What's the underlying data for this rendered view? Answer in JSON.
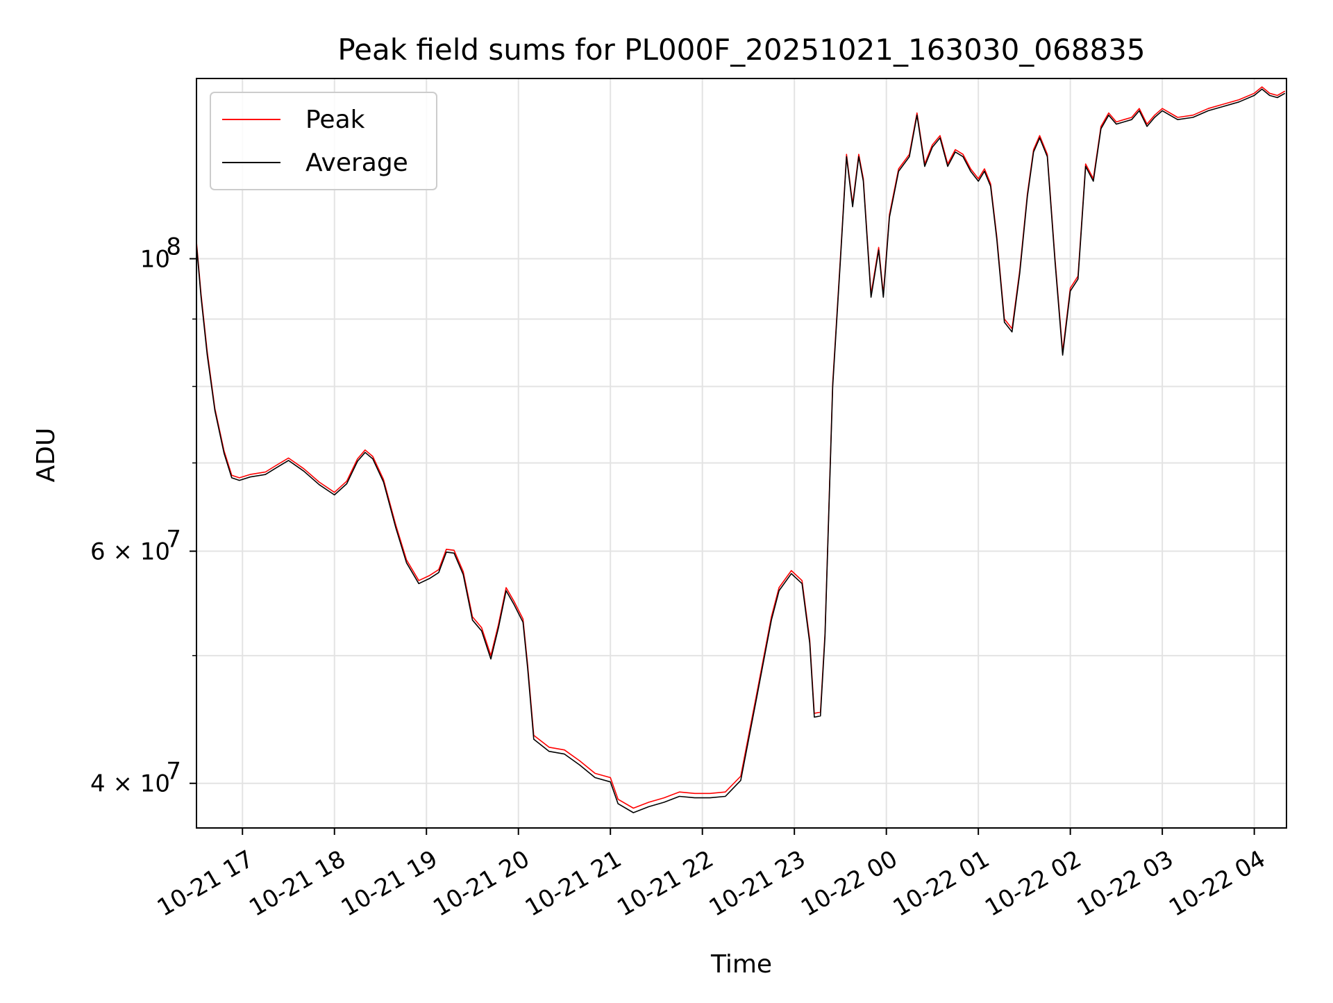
{
  "chart_data": {
    "type": "line",
    "title": "Peak field sums for PL000F_20251021_163030_068835",
    "xlabel": "Time",
    "ylabel": "ADU",
    "yscale": "log",
    "grid": true,
    "legend_position": "top-left",
    "xlim": [
      "2025-10-21 16:30",
      "2025-10-22 04:21"
    ],
    "ylim": [
      37000000,
      137000000
    ],
    "x_ticks": [
      "10-21 17",
      "10-21 18",
      "10-21 19",
      "10-21 20",
      "10-21 21",
      "10-21 22",
      "10-21 23",
      "10-22 00",
      "10-22 01",
      "10-22 02",
      "10-22 03",
      "10-22 04"
    ],
    "y_ticks": [
      {
        "value": 40000000,
        "label": "4 × 10",
        "exp": "7"
      },
      {
        "value": 60000000,
        "label": "6 × 10",
        "exp": "7"
      },
      {
        "value": 100000000,
        "label": "10",
        "exp": "8"
      }
    ],
    "series": [
      {
        "name": "Peak",
        "color": "#ff0000",
        "x": [
          "2025-10-21 16:30",
          "2025-10-21 16:33",
          "2025-10-21 16:37",
          "2025-10-21 16:42",
          "2025-10-21 16:48",
          "2025-10-21 16:53",
          "2025-10-21 16:58",
          "2025-10-21 17:05",
          "2025-10-21 17:15",
          "2025-10-21 17:22",
          "2025-10-21 17:30",
          "2025-10-21 17:40",
          "2025-10-21 17:50",
          "2025-10-21 18:00",
          "2025-10-21 18:08",
          "2025-10-21 18:15",
          "2025-10-21 18:20",
          "2025-10-21 18:25",
          "2025-10-21 18:32",
          "2025-10-21 18:40",
          "2025-10-21 18:47",
          "2025-10-21 18:55",
          "2025-10-21 19:02",
          "2025-10-21 19:08",
          "2025-10-21 19:13",
          "2025-10-21 19:18",
          "2025-10-21 19:24",
          "2025-10-21 19:30",
          "2025-10-21 19:36",
          "2025-10-21 19:42",
          "2025-10-21 19:47",
          "2025-10-21 19:52",
          "2025-10-21 19:57",
          "2025-10-21 20:03",
          "2025-10-21 20:06",
          "2025-10-21 20:10",
          "2025-10-21 20:20",
          "2025-10-21 20:30",
          "2025-10-21 20:40",
          "2025-10-21 20:50",
          "2025-10-21 21:00",
          "2025-10-21 21:05",
          "2025-10-21 21:15",
          "2025-10-21 21:25",
          "2025-10-21 21:35",
          "2025-10-21 21:45",
          "2025-10-21 21:55",
          "2025-10-21 22:05",
          "2025-10-21 22:15",
          "2025-10-21 22:25",
          "2025-10-21 22:35",
          "2025-10-21 22:45",
          "2025-10-21 22:50",
          "2025-10-21 22:58",
          "2025-10-21 23:05",
          "2025-10-21 23:10",
          "2025-10-21 23:13",
          "2025-10-21 23:17",
          "2025-10-21 23:20",
          "2025-10-21 23:25",
          "2025-10-21 23:30",
          "2025-10-21 23:34",
          "2025-10-21 23:38",
          "2025-10-21 23:42",
          "2025-10-21 23:45",
          "2025-10-21 23:50",
          "2025-10-21 23:55",
          "2025-10-21 23:58",
          "2025-10-22 00:02",
          "2025-10-22 00:08",
          "2025-10-22 00:15",
          "2025-10-22 00:20",
          "2025-10-22 00:25",
          "2025-10-22 00:30",
          "2025-10-22 00:35",
          "2025-10-22 00:40",
          "2025-10-22 00:45",
          "2025-10-22 00:50",
          "2025-10-22 00:55",
          "2025-10-22 01:00",
          "2025-10-22 01:04",
          "2025-10-22 01:08",
          "2025-10-22 01:12",
          "2025-10-22 01:17",
          "2025-10-22 01:22",
          "2025-10-22 01:27",
          "2025-10-22 01:32",
          "2025-10-22 01:36",
          "2025-10-22 01:40",
          "2025-10-22 01:45",
          "2025-10-22 01:50",
          "2025-10-22 01:55",
          "2025-10-22 02:00",
          "2025-10-22 02:05",
          "2025-10-22 02:10",
          "2025-10-22 02:15",
          "2025-10-22 02:20",
          "2025-10-22 02:25",
          "2025-10-22 02:30",
          "2025-10-22 02:35",
          "2025-10-22 02:40",
          "2025-10-22 02:45",
          "2025-10-22 02:50",
          "2025-10-22 02:55",
          "2025-10-22 03:00",
          "2025-10-22 03:10",
          "2025-10-22 03:20",
          "2025-10-22 03:30",
          "2025-10-22 03:40",
          "2025-10-22 03:50",
          "2025-10-22 04:00",
          "2025-10-22 04:05",
          "2025-10-22 04:10",
          "2025-10-22 04:15",
          "2025-10-22 04:20"
        ],
        "values": [
          103000000,
          94000000,
          85000000,
          77000000,
          71500000,
          68500000,
          68200000,
          68600000,
          68900000,
          69700000,
          70600000,
          69300000,
          67700000,
          66500000,
          67800000,
          70500000,
          71600000,
          70800000,
          68000000,
          62800000,
          59100000,
          57000000,
          57500000,
          58100000,
          60200000,
          60100000,
          57900000,
          53500000,
          52500000,
          50000000,
          52800000,
          56300000,
          55000000,
          53300000,
          49200000,
          43500000,
          42600000,
          42400000,
          41600000,
          40700000,
          40400000,
          38900000,
          38300000,
          38700000,
          39000000,
          39400000,
          39300000,
          39300000,
          39400000,
          40500000,
          46500000,
          53500000,
          56300000,
          58000000,
          57000000,
          51400000,
          45200000,
          45300000,
          52000000,
          80500000,
          100000000,
          120000000,
          110000000,
          120000000,
          115000000,
          94000000,
          102000000,
          94000000,
          108000000,
          117000000,
          120000000,
          129000000,
          118000000,
          122000000,
          124000000,
          118000000,
          121000000,
          120000000,
          117000000,
          115000000,
          117000000,
          114000000,
          104000000,
          90000000,
          88500000,
          98000000,
          112000000,
          121000000,
          124000000,
          120000000,
          100000000,
          85000000,
          95000000,
          97000000,
          118000000,
          115000000,
          126000000,
          129000000,
          127000000,
          127500000,
          128000000,
          130000000,
          126500000,
          128500000,
          130000000,
          128000000,
          128500000,
          130000000,
          131000000,
          132000000,
          133500000,
          135000000,
          133500000,
          133000000,
          134000000
        ]
      },
      {
        "name": "Average",
        "color": "#000000",
        "x": [
          "2025-10-21 16:30",
          "2025-10-21 16:33",
          "2025-10-21 16:37",
          "2025-10-21 16:42",
          "2025-10-21 16:48",
          "2025-10-21 16:53",
          "2025-10-21 16:58",
          "2025-10-21 17:05",
          "2025-10-21 17:15",
          "2025-10-21 17:22",
          "2025-10-21 17:30",
          "2025-10-21 17:40",
          "2025-10-21 17:50",
          "2025-10-21 18:00",
          "2025-10-21 18:08",
          "2025-10-21 18:15",
          "2025-10-21 18:20",
          "2025-10-21 18:25",
          "2025-10-21 18:32",
          "2025-10-21 18:40",
          "2025-10-21 18:47",
          "2025-10-21 18:55",
          "2025-10-21 19:02",
          "2025-10-21 19:08",
          "2025-10-21 19:13",
          "2025-10-21 19:18",
          "2025-10-21 19:24",
          "2025-10-21 19:30",
          "2025-10-21 19:36",
          "2025-10-21 19:42",
          "2025-10-21 19:47",
          "2025-10-21 19:52",
          "2025-10-21 19:57",
          "2025-10-21 20:03",
          "2025-10-21 20:06",
          "2025-10-21 20:10",
          "2025-10-21 20:20",
          "2025-10-21 20:30",
          "2025-10-21 20:40",
          "2025-10-21 20:50",
          "2025-10-21 21:00",
          "2025-10-21 21:05",
          "2025-10-21 21:15",
          "2025-10-21 21:25",
          "2025-10-21 21:35",
          "2025-10-21 21:45",
          "2025-10-21 21:55",
          "2025-10-21 22:05",
          "2025-10-21 22:15",
          "2025-10-21 22:25",
          "2025-10-21 22:35",
          "2025-10-21 22:45",
          "2025-10-21 22:50",
          "2025-10-21 22:58",
          "2025-10-21 23:05",
          "2025-10-21 23:10",
          "2025-10-21 23:13",
          "2025-10-21 23:17",
          "2025-10-21 23:20",
          "2025-10-21 23:25",
          "2025-10-21 23:30",
          "2025-10-21 23:34",
          "2025-10-21 23:38",
          "2025-10-21 23:42",
          "2025-10-21 23:45",
          "2025-10-21 23:50",
          "2025-10-21 23:55",
          "2025-10-21 23:58",
          "2025-10-22 00:02",
          "2025-10-22 00:08",
          "2025-10-22 00:15",
          "2025-10-22 00:20",
          "2025-10-22 00:25",
          "2025-10-22 00:30",
          "2025-10-22 00:35",
          "2025-10-22 00:40",
          "2025-10-22 00:45",
          "2025-10-22 00:50",
          "2025-10-22 00:55",
          "2025-10-22 01:00",
          "2025-10-22 01:04",
          "2025-10-22 01:08",
          "2025-10-22 01:12",
          "2025-10-22 01:17",
          "2025-10-22 01:22",
          "2025-10-22 01:27",
          "2025-10-22 01:32",
          "2025-10-22 01:36",
          "2025-10-22 01:40",
          "2025-10-22 01:45",
          "2025-10-22 01:50",
          "2025-10-22 01:55",
          "2025-10-22 02:00",
          "2025-10-22 02:05",
          "2025-10-22 02:10",
          "2025-10-22 02:15",
          "2025-10-22 02:20",
          "2025-10-22 02:25",
          "2025-10-22 02:30",
          "2025-10-22 02:35",
          "2025-10-22 02:40",
          "2025-10-22 02:45",
          "2025-10-22 02:50",
          "2025-10-22 02:55",
          "2025-10-22 03:00",
          "2025-10-22 03:10",
          "2025-10-22 03:20",
          "2025-10-22 03:30",
          "2025-10-22 03:40",
          "2025-10-22 03:50",
          "2025-10-22 04:00",
          "2025-10-22 04:05",
          "2025-10-22 04:10",
          "2025-10-22 04:15",
          "2025-10-22 04:20"
        ],
        "values": [
          102500000,
          93500000,
          84500000,
          76700000,
          71200000,
          68200000,
          67900000,
          68300000,
          68600000,
          69400000,
          70300000,
          69000000,
          67400000,
          66200000,
          67500000,
          70200000,
          71300000,
          70500000,
          67700000,
          62500000,
          58800000,
          56700000,
          57200000,
          57800000,
          59900000,
          59800000,
          57600000,
          53200000,
          52200000,
          49700000,
          52500000,
          56000000,
          54700000,
          53000000,
          48900000,
          43200000,
          42300000,
          42100000,
          41300000,
          40400000,
          40100000,
          38600000,
          38000000,
          38400000,
          38700000,
          39100000,
          39000000,
          39000000,
          39100000,
          40200000,
          46200000,
          53200000,
          56000000,
          57700000,
          56700000,
          51100000,
          44900000,
          45000000,
          51700000,
          80000000,
          99500000,
          119500000,
          109500000,
          119500000,
          114500000,
          93500000,
          101500000,
          93500000,
          107500000,
          116500000,
          119500000,
          128500000,
          117500000,
          121500000,
          123500000,
          117500000,
          120500000,
          119500000,
          116500000,
          114500000,
          116500000,
          113500000,
          103500000,
          89500000,
          88000000,
          97500000,
          111500000,
          120500000,
          123500000,
          119500000,
          99500000,
          84500000,
          94500000,
          96500000,
          117500000,
          114500000,
          125500000,
          128500000,
          126500000,
          127000000,
          127500000,
          129500000,
          126000000,
          128000000,
          129500000,
          127500000,
          128000000,
          129500000,
          130500000,
          131500000,
          133000000,
          134500000,
          133000000,
          132500000,
          133500000
        ]
      }
    ]
  }
}
